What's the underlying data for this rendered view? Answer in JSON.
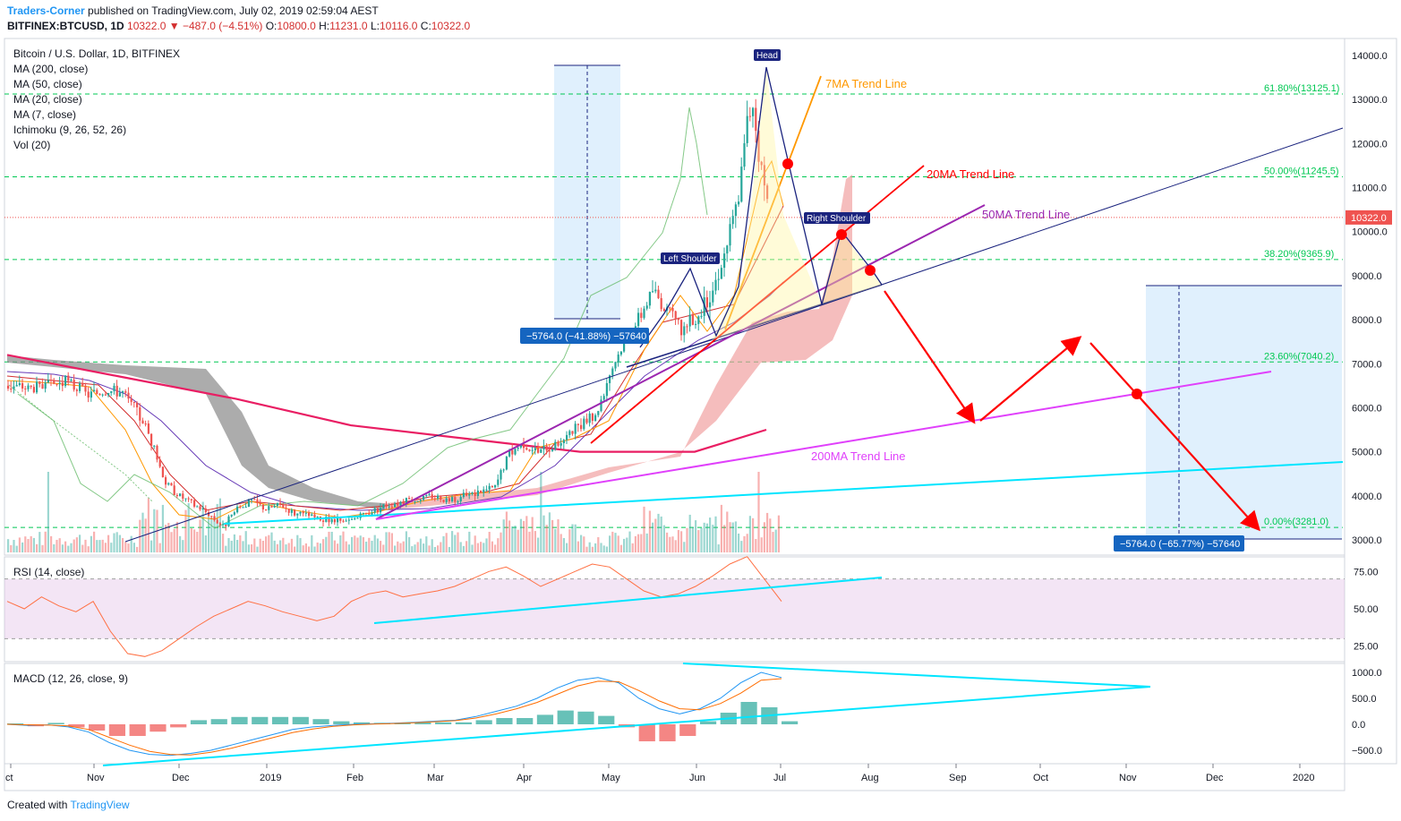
{
  "header": {
    "author": "Traders-Corner",
    "published": "published on TradingView.com, July 02, 2019 02:59:04 AEST",
    "symbol": "BITFINEX:BTCUSD, 1D",
    "change": "10322.0 ▼ −487.0 (−4.51%)",
    "o_label": "O:",
    "o_value": "10800.0",
    "h_label": "H:",
    "h_value": "11231.0",
    "l_label": "L:",
    "l_value": "10116.0",
    "c_label": "C:",
    "c_value": "10322.0"
  },
  "footer": {
    "created_with": "Created with",
    "brand": "TradingView"
  },
  "colors": {
    "bull": "#26a69a",
    "bear": "#ef5350",
    "ma200": "#e91e63",
    "ma50": "#673ab7",
    "ma20": "#d32f2f",
    "ma7": "#ff9800",
    "cloud_bear": "#808080",
    "cloud_bull": "#ef9a9a",
    "trend_cyan": "#00e5ff",
    "trend_blue": "#1a237e",
    "fib": "#00c853",
    "arrow": "#f00"
  },
  "chart_data": [
    {
      "type": "candlestick",
      "title": "Bitcoin / U.S. Dollar, 1D, BITFINEX",
      "indicators": [
        "MA (200, close)",
        "MA (50, close)",
        "MA (20, close)",
        "MA (7, close)",
        "Ichimoku (9, 26, 52, 26)",
        "Vol (20)"
      ],
      "x_ticks": [
        "ct",
        "Nov",
        "Dec",
        "2019",
        "Feb",
        "Mar",
        "Apr",
        "May",
        "Jun",
        "Jul",
        "Aug",
        "Sep",
        "Oct",
        "Nov",
        "Dec",
        "2020"
      ],
      "y_ticks": [
        "14000.0",
        "13000.0",
        "12000.0",
        "11000.0",
        "10000.0",
        "9000.0",
        "8000.0",
        "7000.0",
        "6000.0",
        "5000.0",
        "4000.0",
        "3000.0"
      ],
      "ylim": [
        2750,
        14500
      ],
      "last_price": "10322.0",
      "fib_levels": [
        {
          "label": "61.80%(13125.1)",
          "value": 13125.1
        },
        {
          "label": "50.00%(11245.5)",
          "value": 11245.5
        },
        {
          "label": "38.20%(9365.9)",
          "value": 9365.9
        },
        {
          "label": "23.60%(7040.2)",
          "value": 7040.2
        },
        {
          "label": "0.00%(3281.0)",
          "value": 3281.0
        }
      ],
      "annotations": {
        "head": "Head",
        "left_shoulder": "Left Shoulder",
        "right_shoulder": "Right Shoulder",
        "ma7_trend": "7MA Trend Line",
        "ma20_trend": "20MA Trend Line",
        "ma50_trend": "50MA Trend Line",
        "ma200_trend": "200MA Trend Line",
        "measure_1": "−5764.0 (−41.88%) −57640",
        "measure_2": "−5764.0 (−65.77%) −57640"
      },
      "price_path": [
        [
          0,
          6500
        ],
        [
          10,
          6450
        ],
        [
          20,
          6600
        ],
        [
          28,
          6300
        ],
        [
          35,
          6400
        ],
        [
          40,
          6350
        ],
        [
          48,
          5600
        ],
        [
          55,
          4300
        ],
        [
          60,
          4000
        ],
        [
          65,
          3800
        ],
        [
          70,
          3600
        ],
        [
          75,
          3300
        ],
        [
          80,
          3700
        ],
        [
          85,
          3900
        ],
        [
          90,
          3700
        ],
        [
          95,
          3800
        ],
        [
          100,
          3600
        ],
        [
          105,
          3550
        ],
        [
          110,
          3450
        ],
        [
          118,
          3400
        ],
        [
          125,
          3600
        ],
        [
          132,
          3800
        ],
        [
          140,
          3900
        ],
        [
          148,
          4000
        ],
        [
          155,
          3900
        ],
        [
          162,
          4050
        ],
        [
          170,
          4200
        ],
        [
          175,
          5000
        ],
        [
          180,
          5200
        ],
        [
          185,
          5000
        ],
        [
          192,
          5200
        ],
        [
          198,
          5500
        ],
        [
          205,
          5800
        ],
        [
          210,
          6800
        ],
        [
          215,
          7500
        ],
        [
          220,
          8000
        ],
        [
          225,
          8700
        ],
        [
          230,
          8200
        ],
        [
          235,
          7800
        ],
        [
          240,
          8000
        ],
        [
          245,
          8500
        ],
        [
          250,
          9500
        ],
        [
          255,
          10800
        ],
        [
          258,
          12500
        ],
        [
          260,
          13000
        ],
        [
          262,
          11800
        ],
        [
          265,
          10700
        ]
      ],
      "ma200_path": [
        [
          0,
          7200
        ],
        [
          40,
          6700
        ],
        [
          80,
          6200
        ],
        [
          120,
          5600
        ],
        [
          160,
          5300
        ],
        [
          200,
          5000
        ],
        [
          240,
          5000
        ],
        [
          265,
          5500
        ]
      ]
    },
    {
      "type": "line",
      "title": "RSI (14, close)",
      "y_ticks": [
        "75.00",
        "50.00",
        "25.00"
      ],
      "ylim": [
        10,
        90
      ],
      "band": [
        30,
        70
      ],
      "values": [
        55,
        50,
        58,
        52,
        48,
        55,
        35,
        20,
        18,
        22,
        30,
        38,
        45,
        50,
        55,
        52,
        48,
        45,
        42,
        45,
        55,
        60,
        62,
        58,
        60,
        62,
        65,
        70,
        75,
        78,
        72,
        65,
        70,
        75,
        80,
        78,
        70,
        62,
        58,
        60,
        65,
        72,
        80,
        85,
        70,
        55
      ]
    },
    {
      "type": "line",
      "title": "MACD (12, 26, close, 9)",
      "y_ticks": [
        "1000.0",
        "500.0",
        "0.0",
        "−500.0"
      ],
      "ylim": [
        -700,
        1100
      ],
      "macd": [
        0,
        -20,
        -10,
        -50,
        -150,
        -350,
        -500,
        -580,
        -600,
        -560,
        -500,
        -400,
        -300,
        -200,
        -100,
        -50,
        -20,
        0,
        10,
        20,
        40,
        60,
        80,
        150,
        250,
        350,
        500,
        700,
        850,
        900,
        800,
        500,
        300,
        200,
        300,
        500,
        800,
        1000,
        900
      ],
      "signal": [
        0,
        -10,
        -15,
        -30,
        -100,
        -250,
        -400,
        -520,
        -580,
        -590,
        -540,
        -460,
        -360,
        -260,
        -160,
        -90,
        -40,
        -10,
        5,
        15,
        30,
        50,
        70,
        120,
        200,
        300,
        420,
        580,
        740,
        830,
        820,
        650,
        450,
        300,
        280,
        400,
        600,
        850,
        880
      ]
    }
  ]
}
